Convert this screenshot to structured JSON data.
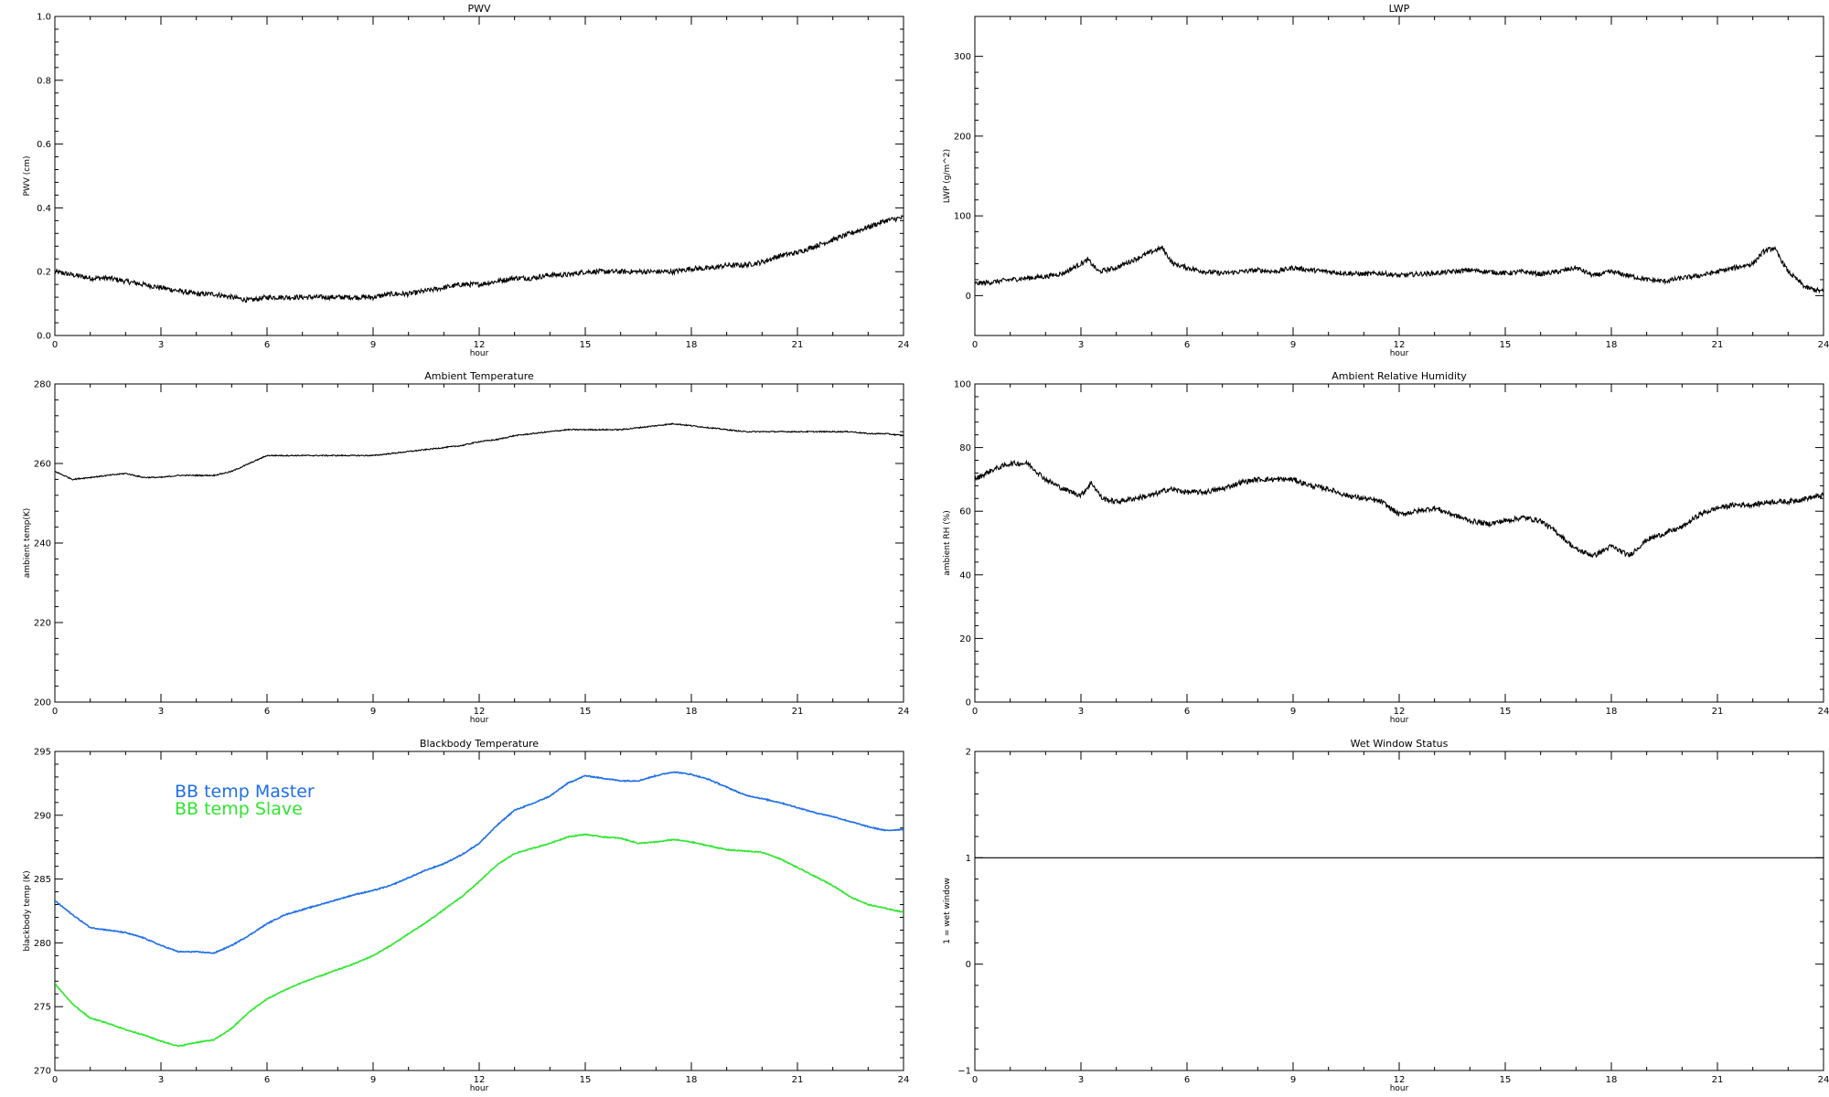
{
  "chart_data": [
    {
      "id": "pwv",
      "type": "line",
      "title": "PWV",
      "xlabel": "hour",
      "ylabel": "PWV (cm)",
      "xlim": [
        0,
        24
      ],
      "ylim": [
        0,
        1
      ],
      "xticks": [
        0,
        3,
        6,
        9,
        12,
        15,
        18,
        21,
        24
      ],
      "yticks": [
        0,
        0.2,
        0.4,
        0.6,
        0.8,
        1.0
      ],
      "ytick_labels": [
        "0.0",
        "0.2",
        "0.4",
        "0.6",
        "0.8",
        "1.0"
      ],
      "noise": 0.008,
      "series": [
        {
          "color": "#000000",
          "x": [
            0,
            0.5,
            1,
            1.5,
            2,
            2.5,
            3,
            3.5,
            4,
            4.5,
            5,
            5.5,
            6,
            6.5,
            7,
            7.5,
            8,
            8.5,
            9,
            9.5,
            10,
            10.5,
            11,
            11.5,
            12,
            12.5,
            13,
            13.5,
            14,
            14.5,
            15,
            15.5,
            16,
            16.5,
            17,
            17.5,
            18,
            18.5,
            19,
            19.5,
            20,
            20.5,
            21,
            21.5,
            22,
            22.5,
            23,
            23.5,
            24
          ],
          "y": [
            0.2,
            0.19,
            0.18,
            0.18,
            0.17,
            0.16,
            0.15,
            0.14,
            0.13,
            0.13,
            0.12,
            0.11,
            0.12,
            0.12,
            0.12,
            0.12,
            0.12,
            0.12,
            0.12,
            0.13,
            0.13,
            0.14,
            0.15,
            0.16,
            0.16,
            0.17,
            0.18,
            0.18,
            0.19,
            0.19,
            0.2,
            0.2,
            0.2,
            0.2,
            0.2,
            0.2,
            0.21,
            0.21,
            0.22,
            0.22,
            0.23,
            0.25,
            0.26,
            0.28,
            0.3,
            0.32,
            0.34,
            0.36,
            0.37
          ]
        }
      ]
    },
    {
      "id": "lwp",
      "type": "line",
      "title": "LWP",
      "xlabel": "hour",
      "ylabel": "LWP (g/m^2)",
      "xlim": [
        0,
        24
      ],
      "ylim": [
        -50,
        350
      ],
      "xticks": [
        0,
        3,
        6,
        9,
        12,
        15,
        18,
        21,
        24
      ],
      "yticks": [
        0,
        100,
        200,
        300
      ],
      "ytick_labels": [
        "0",
        "100",
        "200",
        "300"
      ],
      "noise": 3,
      "series": [
        {
          "color": "#000000",
          "x": [
            0,
            0.5,
            1,
            1.5,
            2,
            2.5,
            3,
            3.2,
            3.5,
            4,
            4.5,
            5,
            5.3,
            5.6,
            6,
            6.5,
            7,
            7.5,
            8,
            8.5,
            9,
            9.5,
            10,
            10.5,
            11,
            11.5,
            12,
            12.5,
            13,
            13.5,
            14,
            14.5,
            15,
            15.5,
            16,
            16.5,
            17,
            17.5,
            18,
            18.5,
            19,
            19.5,
            20,
            20.5,
            21,
            21.5,
            22,
            22.3,
            22.6,
            23,
            23.5,
            24
          ],
          "y": [
            15,
            17,
            20,
            22,
            24,
            28,
            40,
            45,
            30,
            35,
            45,
            55,
            60,
            40,
            35,
            30,
            28,
            30,
            32,
            30,
            35,
            32,
            30,
            28,
            27,
            28,
            25,
            27,
            28,
            30,
            32,
            30,
            28,
            30,
            27,
            30,
            35,
            25,
            30,
            25,
            20,
            18,
            22,
            25,
            30,
            35,
            40,
            55,
            60,
            30,
            10,
            5
          ]
        }
      ]
    },
    {
      "id": "ambient-temperature",
      "type": "line",
      "title": "Ambient Temperature",
      "xlabel": "hour",
      "ylabel": "ambient temp(K)",
      "xlim": [
        0,
        24
      ],
      "ylim": [
        200,
        280
      ],
      "xticks": [
        0,
        3,
        6,
        9,
        12,
        15,
        18,
        21,
        24
      ],
      "yticks": [
        200,
        220,
        240,
        260,
        280
      ],
      "ytick_labels": [
        "200",
        "220",
        "240",
        "260",
        "280"
      ],
      "noise": 0.15,
      "series": [
        {
          "color": "#000000",
          "x": [
            0,
            0.5,
            1,
            1.5,
            2,
            2.5,
            3,
            3.5,
            4,
            4.5,
            5,
            5.5,
            6,
            6.5,
            7,
            7.5,
            8,
            8.5,
            9,
            9.5,
            10,
            10.5,
            11,
            11.5,
            12,
            12.5,
            13,
            13.5,
            14,
            14.5,
            15,
            15.5,
            16,
            16.5,
            17,
            17.5,
            18,
            18.5,
            19,
            19.5,
            20,
            20.5,
            21,
            21.5,
            22,
            22.5,
            23,
            23.5,
            24
          ],
          "y": [
            258,
            256,
            256.5,
            257,
            257.5,
            256.5,
            256.5,
            257,
            257,
            257,
            258,
            260,
            262,
            262,
            262,
            262,
            262,
            262,
            262,
            262.5,
            263,
            263.5,
            264,
            264.5,
            265.5,
            266,
            267,
            267.5,
            268,
            268.5,
            268.5,
            268.5,
            268.5,
            269,
            269.5,
            270,
            269.5,
            269,
            268.5,
            268,
            268,
            268,
            268,
            268,
            268,
            268,
            267.5,
            267.5,
            267
          ]
        }
      ]
    },
    {
      "id": "ambient-relative-humidity",
      "type": "line",
      "title": "Ambient Relative Humidity",
      "xlabel": "hour",
      "ylabel": "ambient RH (%)",
      "xlim": [
        0,
        24
      ],
      "ylim": [
        0,
        100
      ],
      "xticks": [
        0,
        3,
        6,
        9,
        12,
        15,
        18,
        21,
        24
      ],
      "yticks": [
        0,
        20,
        40,
        60,
        80,
        100
      ],
      "ytick_labels": [
        "0",
        "20",
        "40",
        "60",
        "80",
        "100"
      ],
      "noise": 0.8,
      "series": [
        {
          "color": "#000000",
          "x": [
            0,
            0.5,
            1,
            1.5,
            2,
            2.5,
            3,
            3.3,
            3.6,
            4,
            4.5,
            5,
            5.5,
            6,
            6.5,
            7,
            7.5,
            8,
            8.5,
            9,
            9.5,
            10,
            10.5,
            11,
            11.5,
            12,
            12.5,
            13,
            13.5,
            14,
            14.5,
            15,
            15.5,
            16,
            16.5,
            17,
            17.5,
            18,
            18.5,
            19,
            19.5,
            20,
            20.5,
            21,
            21.5,
            22,
            22.5,
            23,
            23.5,
            24
          ],
          "y": [
            70,
            73,
            75,
            75,
            70,
            67,
            65,
            69,
            64,
            63,
            64,
            65,
            67,
            66,
            66,
            67,
            69,
            70,
            70,
            70,
            68,
            67,
            65,
            64,
            63,
            59,
            60,
            61,
            59,
            57,
            56,
            57,
            58,
            57,
            53,
            48,
            46,
            49,
            46,
            51,
            53,
            55,
            59,
            61,
            62,
            62,
            63,
            63,
            64,
            65
          ]
        }
      ]
    },
    {
      "id": "blackbody-temperature",
      "type": "line",
      "title": "Blackbody Temperature",
      "xlabel": "hour",
      "ylabel": "blackbody temp (K)",
      "xlim": [
        0,
        24
      ],
      "ylim": [
        270,
        295
      ],
      "xticks": [
        0,
        3,
        6,
        9,
        12,
        15,
        18,
        21,
        24
      ],
      "yticks": [
        270,
        275,
        280,
        285,
        290,
        295
      ],
      "ytick_labels": [
        "270",
        "275",
        "280",
        "285",
        "290",
        "295"
      ],
      "noise": 0.04,
      "legend": {
        "placement": "top-left"
      },
      "series": [
        {
          "name": "BB temp Master",
          "color": "#1f6fe6",
          "x": [
            0,
            0.5,
            1,
            1.5,
            2,
            2.5,
            3,
            3.5,
            4,
            4.5,
            5,
            5.5,
            6,
            6.5,
            7,
            7.5,
            8,
            8.5,
            9,
            9.5,
            10,
            10.5,
            11,
            11.5,
            12,
            12.5,
            13,
            13.5,
            14,
            14.5,
            15,
            15.5,
            16,
            16.5,
            17,
            17.5,
            18,
            18.5,
            19,
            19.5,
            20,
            20.5,
            21,
            21.5,
            22,
            22.5,
            23,
            23.5,
            24
          ],
          "y": [
            283.3,
            282.2,
            281.2,
            281,
            280.8,
            280.4,
            279.8,
            279.3,
            279.3,
            279.2,
            279.8,
            280.6,
            281.5,
            282.2,
            282.6,
            283,
            283.4,
            283.8,
            284.1,
            284.5,
            285.1,
            285.7,
            286.2,
            286.9,
            287.8,
            289.2,
            290.4,
            290.9,
            291.5,
            292.5,
            293.1,
            292.9,
            292.7,
            292.7,
            293.1,
            293.4,
            293.2,
            292.8,
            292.2,
            291.6,
            291.3,
            291,
            290.6,
            290.2,
            289.9,
            289.5,
            289.1,
            288.8,
            288.9
          ]
        },
        {
          "name": "BB temp Slave",
          "color": "#2ee62e",
          "x": [
            0,
            0.5,
            1,
            1.5,
            2,
            2.5,
            3,
            3.5,
            4,
            4.5,
            5,
            5.5,
            6,
            6.5,
            7,
            7.5,
            8,
            8.5,
            9,
            9.5,
            10,
            10.5,
            11,
            11.5,
            12,
            12.5,
            13,
            13.5,
            14,
            14.5,
            15,
            15.5,
            16,
            16.5,
            17,
            17.5,
            18,
            18.5,
            19,
            19.5,
            20,
            20.5,
            21,
            21.5,
            22,
            22.5,
            23,
            23.5,
            24
          ],
          "y": [
            276.8,
            275.2,
            274.1,
            273.7,
            273.2,
            272.8,
            272.3,
            271.9,
            272.2,
            272.4,
            273.3,
            274.6,
            275.6,
            276.3,
            276.9,
            277.4,
            277.9,
            278.4,
            279,
            279.8,
            280.7,
            281.6,
            282.6,
            283.6,
            284.8,
            286.1,
            287,
            287.4,
            287.8,
            288.3,
            288.5,
            288.3,
            288.2,
            287.8,
            287.9,
            288.1,
            287.9,
            287.6,
            287.3,
            287.2,
            287.1,
            286.6,
            285.9,
            285.2,
            284.5,
            283.6,
            283,
            282.7,
            282.4
          ]
        }
      ]
    },
    {
      "id": "wet-window-status",
      "type": "line",
      "title": "Wet Window Status",
      "xlabel": "hour",
      "ylabel": "1 = wet window",
      "xlim": [
        0,
        24
      ],
      "ylim": [
        -1,
        2
      ],
      "xticks": [
        0,
        3,
        6,
        9,
        12,
        15,
        18,
        21,
        24
      ],
      "yticks": [
        -1,
        0,
        1,
        2
      ],
      "ytick_labels": [
        "−1",
        "0",
        "1",
        "2"
      ],
      "noise": 0,
      "series": [
        {
          "color": "#000000",
          "x": [
            0,
            24
          ],
          "y": [
            1,
            1
          ]
        }
      ]
    }
  ]
}
